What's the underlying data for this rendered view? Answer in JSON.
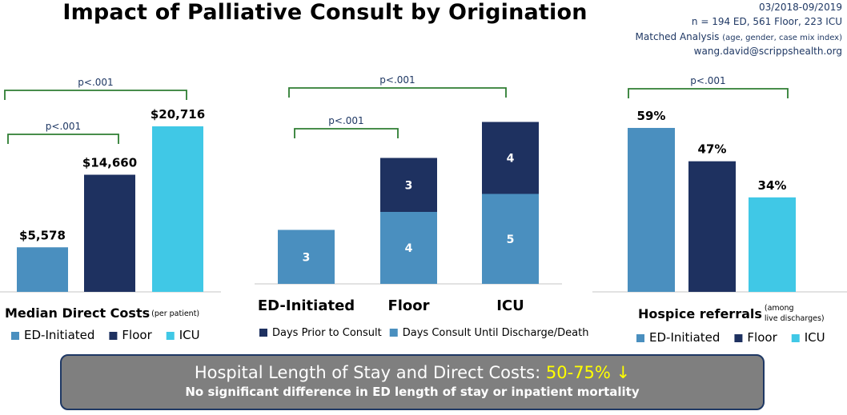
{
  "title": "Impact of Palliative Consult by Origination",
  "meta": {
    "dates": "03/2018-09/2019",
    "n": "n = 194 ED, 561 Floor, 223 ICU",
    "analysis": "Matched Analysis",
    "analysis_note": "(age, gender, case mix index)",
    "email": "wang.david@scrippshealth.org"
  },
  "colors": {
    "ed": "#4a8fbf",
    "floor": "#1e3160",
    "icu": "#40c8e6",
    "bracket": "#2e7d32",
    "axis": "#d9d9d9"
  },
  "chart_data": [
    {
      "type": "bar",
      "title": "Median Direct Costs",
      "title_note": "(per patient)",
      "categories": [
        "ED-Initiated",
        "Floor",
        "ICU"
      ],
      "values": [
        5578,
        14660,
        20716
      ],
      "value_labels": [
        "$5,578",
        "$14,660",
        "$20,716"
      ],
      "ylim": [
        0,
        22000
      ],
      "legend": [
        "ED-Initiated",
        "Floor",
        "ICU"
      ],
      "legend_position": "bottom",
      "annotations": [
        {
          "text": "p<.001",
          "from": "ED-Initiated",
          "to": "ICU"
        },
        {
          "text": "p<.001",
          "from": "ED-Initiated",
          "to": "Floor"
        }
      ]
    },
    {
      "type": "bar",
      "stacked": true,
      "categories": [
        "ED-Initiated",
        "Floor",
        "ICU"
      ],
      "series": [
        {
          "name": "Days Consult Until Discharge/Death",
          "values": [
            3,
            4,
            5
          ]
        },
        {
          "name": "Days Prior to Consult",
          "values": [
            0,
            3,
            4
          ]
        }
      ],
      "ylim": [
        0,
        10
      ],
      "legend": [
        "Days Prior to Consult",
        "Days Consult Until Discharge/Death"
      ],
      "legend_position": "bottom",
      "annotations": [
        {
          "text": "p<.001",
          "from": "ED-Initiated",
          "to": "ICU"
        },
        {
          "text": "p<.001",
          "from": "ED-Initiated",
          "to": "Floor"
        }
      ]
    },
    {
      "type": "bar",
      "title": "Hospice referrals",
      "title_note_1": "(among",
      "title_note_2": "live discharges)",
      "categories": [
        "ED-Initiated",
        "Floor",
        "ICU"
      ],
      "values": [
        59,
        47,
        34
      ],
      "value_labels": [
        "59%",
        "47%",
        "34%"
      ],
      "ylim": [
        0,
        70
      ],
      "legend": [
        "ED-Initiated",
        "Floor",
        "ICU"
      ],
      "legend_position": "bottom",
      "annotations": [
        {
          "text": "p<.001",
          "from": "ED-Initiated",
          "to": "ICU"
        }
      ]
    }
  ],
  "banner": {
    "line1_prefix": "Hospital Length of Stay and Direct Costs:",
    "line1_highlight": "50-75% ↓",
    "line2": "No significant difference in ED length of stay or inpatient mortality"
  }
}
